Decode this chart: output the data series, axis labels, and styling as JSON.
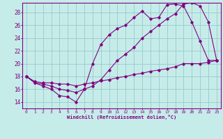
{
  "bg_color": "#c6ecea",
  "line_color": "#800080",
  "grid_color": "#9ecece",
  "xlabel": "Windchill (Refroidissement éolien,°C)",
  "xlim": [
    -0.5,
    23.5
  ],
  "ylim": [
    13.0,
    29.5
  ],
  "yticks": [
    14,
    16,
    18,
    20,
    22,
    24,
    26,
    28
  ],
  "xticks": [
    0,
    1,
    2,
    3,
    4,
    5,
    6,
    7,
    8,
    9,
    10,
    11,
    12,
    13,
    14,
    15,
    16,
    17,
    18,
    19,
    20,
    21,
    22,
    23
  ],
  "curve1_x": [
    0,
    1,
    2,
    3,
    4,
    5,
    6,
    7,
    8,
    9,
    10,
    11,
    12,
    13,
    14,
    15,
    16,
    17,
    18,
    19,
    20,
    21,
    22,
    23
  ],
  "curve1_y": [
    18,
    17,
    16.5,
    16,
    15,
    14.8,
    14,
    16,
    20,
    23,
    24.5,
    25.5,
    26,
    27.2,
    28.2,
    27,
    27.2,
    29.2,
    29.3,
    29,
    26.5,
    23.5,
    20.5,
    20.5
  ],
  "curve2_x": [
    0,
    1,
    2,
    3,
    4,
    5,
    6,
    7,
    8,
    9,
    10,
    11,
    12,
    13,
    14,
    15,
    16,
    17,
    18,
    19,
    20,
    21,
    22,
    23
  ],
  "curve2_y": [
    18,
    17,
    16.8,
    16.5,
    16,
    15.8,
    15.5,
    16,
    16.5,
    17.5,
    19,
    20.5,
    21.5,
    22.5,
    24,
    25,
    26,
    27,
    27.8,
    29.3,
    29.5,
    29,
    26.5,
    20.5
  ],
  "curve3_x": [
    0,
    1,
    2,
    3,
    4,
    5,
    6,
    7,
    8,
    9,
    10,
    11,
    12,
    13,
    14,
    15,
    16,
    17,
    18,
    19,
    20,
    21,
    22,
    23
  ],
  "curve3_y": [
    18,
    17.2,
    17,
    17,
    16.8,
    16.8,
    16.5,
    16.8,
    17,
    17.3,
    17.5,
    17.8,
    18,
    18.3,
    18.5,
    18.8,
    19,
    19.2,
    19.5,
    20,
    20,
    20,
    20.2,
    20.5
  ]
}
